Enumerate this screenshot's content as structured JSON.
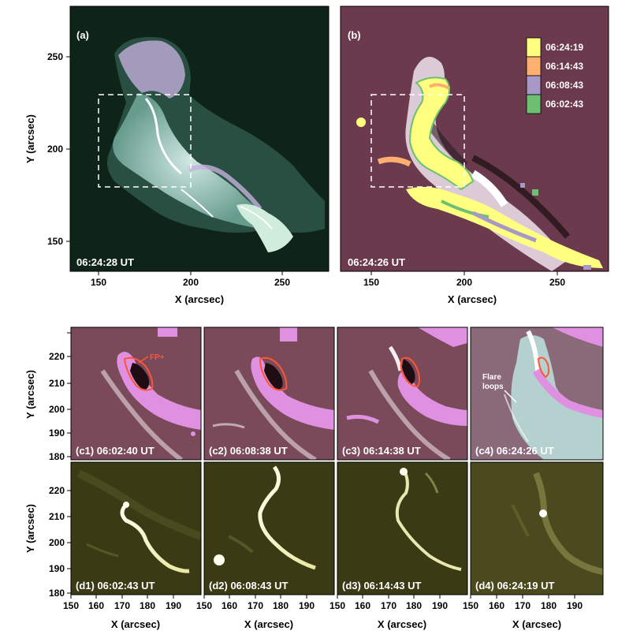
{
  "top_panels": {
    "a": {
      "label": "(a)",
      "time": "06:24:28 UT",
      "x_ticks": [
        "150",
        "200",
        "250"
      ],
      "y_ticks": [
        "250",
        "200",
        "150"
      ],
      "xlabel": "X (arcsec)",
      "ylabel": "Y (arcsec)",
      "background": "#0e2418"
    },
    "b": {
      "label": "(b)",
      "time": "06:24:26 UT",
      "x_ticks": [
        "150",
        "200",
        "250"
      ],
      "xlabel": "X (arcsec)",
      "background": "#6b3a4c",
      "legend": [
        {
          "time": "06:24:19",
          "color": "#ffff80"
        },
        {
          "time": "06:14:43",
          "color": "#ffb070"
        },
        {
          "time": "06:08:43",
          "color": "#a898c8"
        },
        {
          "time": "06:02:43",
          "color": "#6cc070"
        }
      ]
    }
  },
  "c_row": {
    "ylabel": "Y (arcsec)",
    "y_ticks": [
      "220",
      "210",
      "200",
      "190",
      "180"
    ],
    "annotation_fp": "FP+",
    "annotation_loops_line1": "Flare",
    "annotation_loops_line2": "loops",
    "panels": [
      {
        "label": "(c1) 06:02:40 UT"
      },
      {
        "label": "(c2) 06:08:38 UT"
      },
      {
        "label": "(c3) 06:14:38 UT"
      },
      {
        "label": "(c4) 06:24:26 UT"
      }
    ]
  },
  "d_row": {
    "ylabel": "Y (arcsec)",
    "y_ticks": [
      "220",
      "210",
      "200",
      "190",
      "180"
    ],
    "xlabel": "X (arcsec)",
    "x_ticks": [
      "150",
      "160",
      "170",
      "180",
      "190"
    ],
    "panels": [
      {
        "label": "(d1) 06:02:43 UT"
      },
      {
        "label": "(d2) 06:08:43 UT"
      },
      {
        "label": "(d3) 06:14:43 UT"
      },
      {
        "label": "(d4) 06:24:19 UT"
      }
    ]
  },
  "colors": {
    "dmag_bg": "#7a4a5a",
    "euv_bg": "#3a3a14",
    "contour": "#ff5533",
    "ribbon_pink": "#e090e0"
  }
}
